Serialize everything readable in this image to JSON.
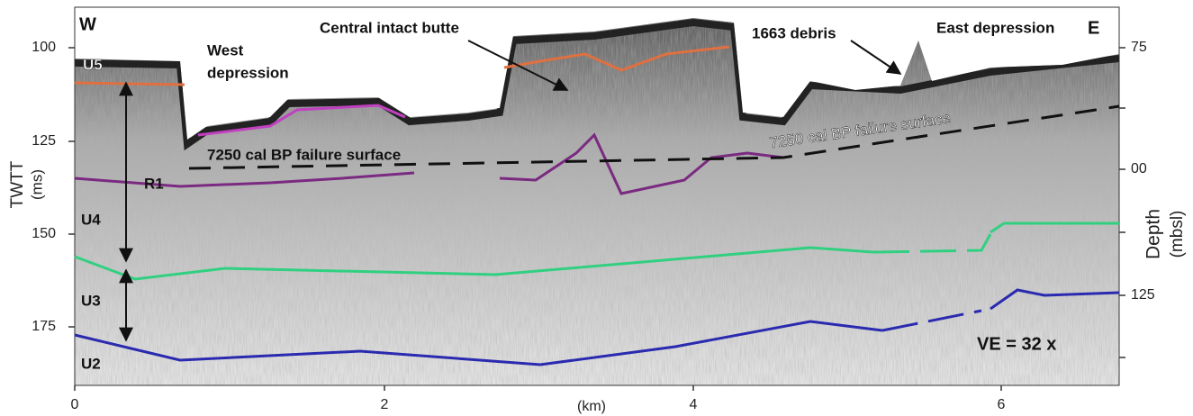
{
  "left_axis": {
    "label": "TWTT",
    "unit": "(ms)",
    "ticks": [
      100,
      125,
      150,
      175
    ]
  },
  "right_axis": {
    "label": "Depth",
    "unit": "(mbsl)",
    "ticks": [
      75,
      "00",
      125
    ]
  },
  "bottom_axis": {
    "label": "(km)",
    "ticks": [
      0,
      2,
      4,
      6
    ]
  },
  "annotations": {
    "west": "W",
    "east": "E",
    "west_depression": [
      "West",
      "depression"
    ],
    "central_butte": "Central intact butte",
    "debris": "1663 debris",
    "east_depression": "East depression",
    "failure_surface": [
      "7250 cal BP failure surface",
      "7250 cal BP  failure surface"
    ],
    "reflector": "R1",
    "units": [
      "U5",
      "U4",
      "U3",
      "U2"
    ],
    "vertical_exaggeration": "VE = 32 x"
  }
}
